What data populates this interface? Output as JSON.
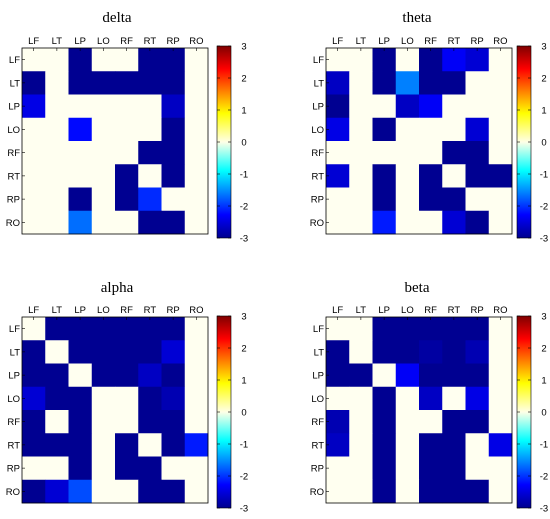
{
  "chart_data": [
    {
      "type": "heatmap",
      "title": "delta",
      "x_categories": [
        "LF",
        "LT",
        "LP",
        "LO",
        "RF",
        "RT",
        "RP",
        "RO"
      ],
      "y_categories": [
        "LF",
        "LT",
        "LP",
        "LO",
        "RF",
        "RT",
        "RP",
        "RO"
      ],
      "values": [
        [
          0,
          0,
          -2.9,
          0,
          0,
          -2.9,
          -2.9,
          0
        ],
        [
          -2.9,
          0,
          -2.9,
          -2.9,
          -2.9,
          -2.9,
          -2.9,
          0
        ],
        [
          -2.4,
          0,
          0,
          0,
          0,
          0,
          -2.6,
          0
        ],
        [
          0,
          0,
          -2.2,
          0,
          0,
          0,
          -2.9,
          0
        ],
        [
          0,
          0,
          0,
          0,
          0,
          -2.9,
          -2.9,
          0
        ],
        [
          0,
          0,
          0,
          0,
          -2.9,
          0,
          -2.9,
          0
        ],
        [
          0,
          0,
          -2.9,
          0,
          -2.9,
          -2.0,
          0,
          0
        ],
        [
          0,
          0,
          -1.6,
          0,
          0,
          -2.9,
          -2.9,
          0
        ]
      ],
      "colorbar": {
        "range": [
          -3,
          3
        ],
        "ticks": [
          "-3",
          "-2",
          "-1",
          "0",
          "1",
          "2",
          "3"
        ]
      }
    },
    {
      "type": "heatmap",
      "title": "theta",
      "x_categories": [
        "LF",
        "LT",
        "LP",
        "LO",
        "RF",
        "RT",
        "RP",
        "RO"
      ],
      "y_categories": [
        "LF",
        "LT",
        "LP",
        "LO",
        "RF",
        "RT",
        "RP",
        "RO"
      ],
      "values": [
        [
          0,
          0,
          -2.9,
          0,
          -2.9,
          -2.3,
          -2.5,
          0
        ],
        [
          -2.6,
          0,
          -2.9,
          -1.5,
          -2.9,
          -2.9,
          0,
          0
        ],
        [
          -2.9,
          0,
          0,
          -2.6,
          -2.3,
          0,
          0,
          0
        ],
        [
          -2.4,
          0,
          -2.9,
          0,
          0,
          0,
          -2.5,
          0
        ],
        [
          0,
          0,
          0,
          0,
          0,
          -2.9,
          -2.9,
          0
        ],
        [
          -2.5,
          0,
          -2.9,
          0,
          -2.9,
          0,
          -2.9,
          -2.9
        ],
        [
          0,
          0,
          -2.9,
          0,
          -2.9,
          -2.9,
          0,
          0
        ],
        [
          0,
          0,
          -2.1,
          0,
          0,
          -2.5,
          -2.9,
          0
        ]
      ],
      "colorbar": {
        "range": [
          -3,
          3
        ],
        "ticks": [
          "-3",
          "-2",
          "-1",
          "0",
          "1",
          "2",
          "3"
        ]
      }
    },
    {
      "type": "heatmap",
      "title": "alpha",
      "x_categories": [
        "LF",
        "LT",
        "LP",
        "LO",
        "RF",
        "RT",
        "RP",
        "RO"
      ],
      "y_categories": [
        "LF",
        "LT",
        "LP",
        "LO",
        "RF",
        "RT",
        "RP",
        "RO"
      ],
      "values": [
        [
          0,
          -2.9,
          -2.9,
          -2.9,
          -2.9,
          -2.9,
          -2.9,
          0
        ],
        [
          -2.9,
          0,
          -2.9,
          -2.9,
          -2.9,
          -2.9,
          -2.5,
          0
        ],
        [
          -2.9,
          -2.9,
          0,
          -2.9,
          -2.9,
          -2.6,
          -2.9,
          0
        ],
        [
          -2.5,
          -2.9,
          -2.9,
          0,
          0,
          -2.9,
          -2.7,
          0
        ],
        [
          -2.9,
          0,
          -2.9,
          0,
          0,
          -2.9,
          -2.9,
          0
        ],
        [
          -2.9,
          -2.9,
          -2.9,
          0,
          -2.9,
          0,
          -2.9,
          -2.1
        ],
        [
          0,
          0,
          -2.9,
          0,
          -2.9,
          -2.9,
          0,
          0
        ],
        [
          -2.9,
          -2.5,
          -1.8,
          0,
          0,
          -2.9,
          -2.9,
          0
        ]
      ],
      "colorbar": {
        "range": [
          -3,
          3
        ],
        "ticks": [
          "-3",
          "-2",
          "-1",
          "0",
          "1",
          "2",
          "3"
        ]
      }
    },
    {
      "type": "heatmap",
      "title": "beta",
      "x_categories": [
        "LF",
        "LT",
        "LP",
        "LO",
        "RF",
        "RT",
        "RP",
        "RO"
      ],
      "y_categories": [
        "LF",
        "LT",
        "LP",
        "LO",
        "RF",
        "RT",
        "RP",
        "RO"
      ],
      "values": [
        [
          0,
          0,
          -2.9,
          -2.9,
          -2.9,
          -2.9,
          -2.9,
          0
        ],
        [
          -2.9,
          0,
          -2.9,
          -2.9,
          -2.8,
          -2.9,
          -2.7,
          0
        ],
        [
          -2.9,
          -2.9,
          0,
          -2.3,
          -2.9,
          -2.9,
          -2.9,
          0
        ],
        [
          0,
          0,
          -2.9,
          0,
          -2.6,
          0,
          -2.4,
          0
        ],
        [
          -2.7,
          0,
          -2.9,
          0,
          0,
          -2.9,
          -2.9,
          0
        ],
        [
          -2.6,
          0,
          -2.9,
          0,
          -2.9,
          -2.9,
          0,
          -2.4
        ],
        [
          0,
          0,
          -2.9,
          0,
          -2.9,
          -2.9,
          0,
          0
        ],
        [
          0,
          0,
          -2.9,
          0,
          -2.9,
          -2.9,
          -2.9,
          0
        ]
      ],
      "colorbar": {
        "range": [
          -3,
          3
        ],
        "ticks": [
          "-3",
          "-2",
          "-1",
          "0",
          "1",
          "2",
          "3"
        ]
      }
    }
  ]
}
